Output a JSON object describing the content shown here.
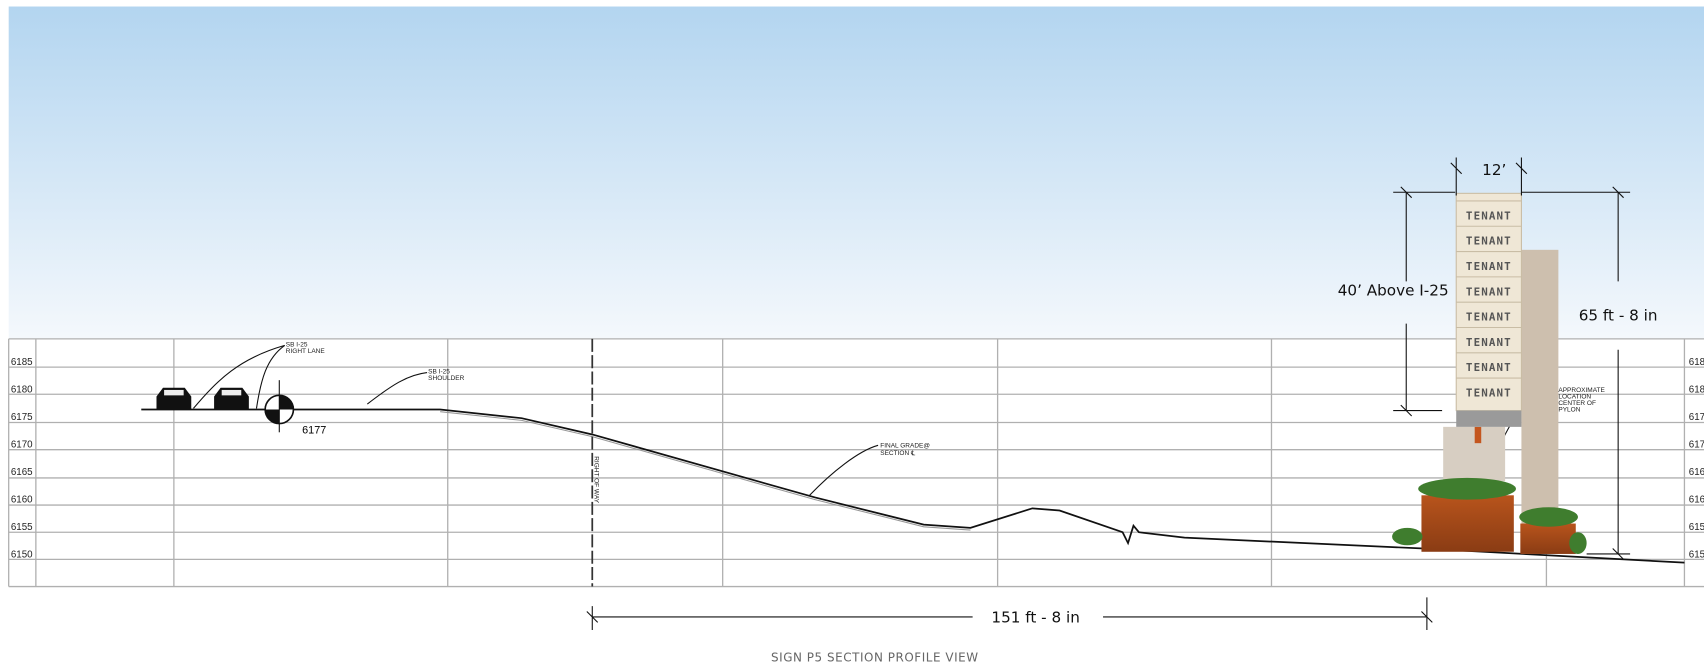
{
  "elevations_left": [
    "6185",
    "6180",
    "6175",
    "6170",
    "6165",
    "6160",
    "6155",
    "6150"
  ],
  "elevations_right": [
    "618",
    "618",
    "617",
    "617",
    "616",
    "616",
    "615",
    "615"
  ],
  "notes": {
    "right_lane": [
      "SB I-25",
      "RIGHT LANE"
    ],
    "shoulder": [
      "SB I-25",
      "SHOULDER"
    ],
    "grade_point": "6177",
    "right_of_way": "RIGHT OF WAY",
    "final_grade": [
      "FINAL GRADE@",
      "SECTION ℄"
    ],
    "pylon_location": [
      "APPROXIMATE",
      "LOCATION",
      "CENTER OF",
      "PYLON"
    ]
  },
  "sign": {
    "width": "12’",
    "height_above": "40’ Above I-25",
    "total_height": "65 ft - 8 in",
    "panels": [
      "TENANT",
      "TENANT",
      "TENANT",
      "TENANT",
      "TENANT",
      "TENANT",
      "TENANT",
      "TENANT"
    ]
  },
  "distance": "151 ft - 8 in",
  "caption": "SIGN P5 SECTION PROFILE VIEW"
}
